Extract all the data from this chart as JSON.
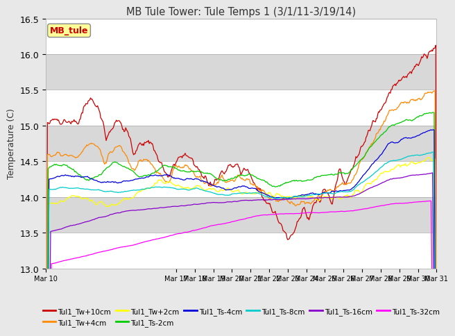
{
  "title": "MB Tule Tower: Tule Temps 1 (3/1/11-3/19/14)",
  "ylabel": "Temperature (C)",
  "ylim": [
    13.0,
    16.5
  ],
  "yticks": [
    13.0,
    13.5,
    14.0,
    14.5,
    15.0,
    15.5,
    16.0,
    16.5
  ],
  "series": [
    {
      "name": "Tul1_Tw+10cm",
      "color": "#cc0000"
    },
    {
      "name": "Tul1_Tw+4cm",
      "color": "#ff8800"
    },
    {
      "name": "Tul1_Tw+2cm",
      "color": "#ffff00"
    },
    {
      "name": "Tul1_Ts-2cm",
      "color": "#00cc00"
    },
    {
      "name": "Tul1_Ts-4cm",
      "color": "#0000dd"
    },
    {
      "name": "Tul1_Ts-8cm",
      "color": "#00cccc"
    },
    {
      "name": "Tul1_Ts-16cm",
      "color": "#8800cc"
    },
    {
      "name": "Tul1_Ts-32cm",
      "color": "#ff00ff"
    }
  ],
  "background_color": "#e8e8e8",
  "band_color_light": "#ffffff",
  "band_color_dark": "#d8d8d8",
  "annotation_box_color": "#ffff99",
  "annotation_box_text": "MB_tule",
  "annotation_box_text_color": "#cc0000",
  "n_points": 500,
  "x_day_start": 10,
  "x_day_end": 31,
  "xtick_days": [
    10,
    17,
    18,
    19,
    20,
    21,
    22,
    23,
    24,
    25,
    26,
    27,
    28,
    29,
    30,
    31
  ]
}
